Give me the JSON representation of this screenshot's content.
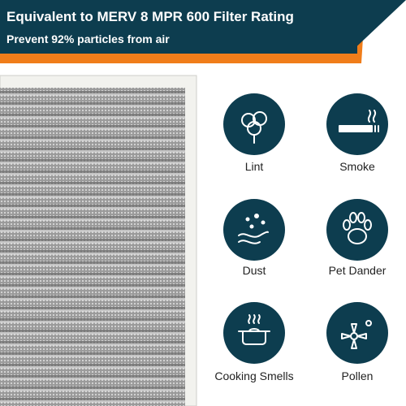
{
  "header": {
    "title": "Equivalent to MERV 8 MPR 600 Filter Rating",
    "subtitle": "Prevent 92% particles from air"
  },
  "items": [
    "Lint",
    "Smoke",
    "Dust",
    "Pet Dander",
    "Cooking Smells",
    "Pollen"
  ]
}
